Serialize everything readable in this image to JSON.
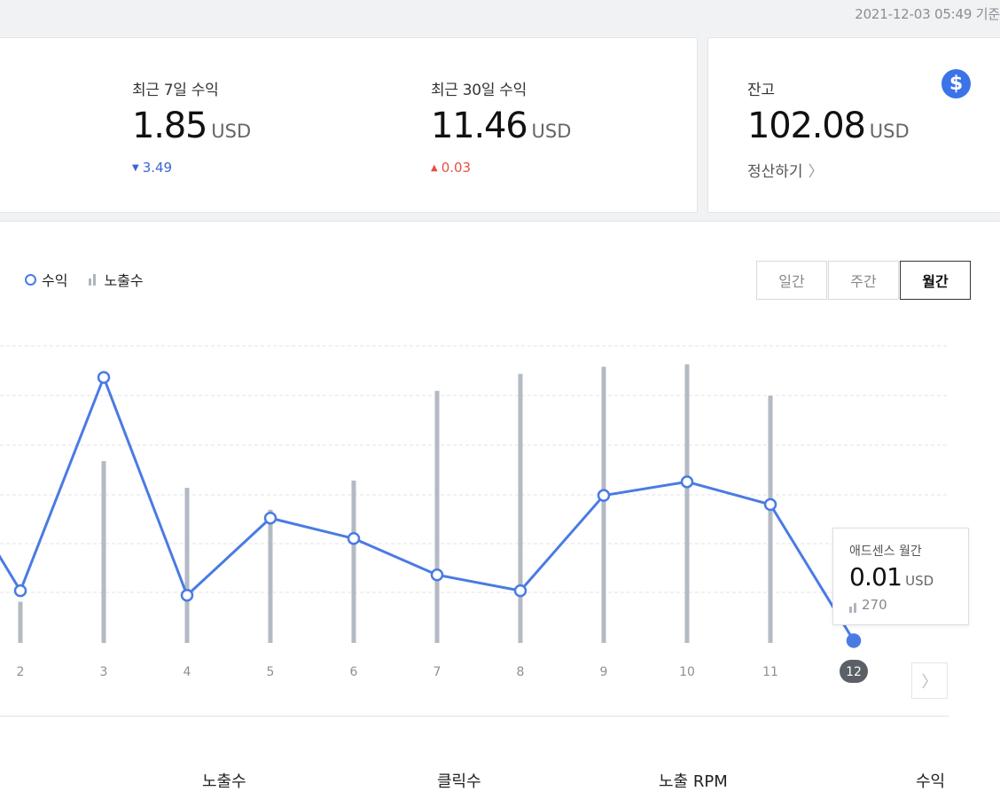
{
  "header": {
    "timestamp": "2021-12-03 05:49 기준"
  },
  "summary": {
    "last7": {
      "label": "최근 7일 수익",
      "value": "1.85",
      "unit": "USD",
      "change": "3.49",
      "direction": "down"
    },
    "last30": {
      "label": "최근 30일 수익",
      "value": "11.46",
      "unit": "USD",
      "change": "0.03",
      "direction": "up"
    },
    "balance": {
      "label": "잔고",
      "value": "102.08",
      "unit": "USD",
      "action": "정산하기",
      "icon": "dollar-icon"
    }
  },
  "legend": {
    "revenue": "수익",
    "impressions": "노출수"
  },
  "period_tabs": [
    "일간",
    "주간",
    "월간"
  ],
  "active_tab": "월간",
  "tooltip": {
    "title": "애드센스 월간",
    "value": "0.01",
    "unit": "USD",
    "impressions": "270"
  },
  "table_headers": [
    "노출수",
    "클릭수",
    "노출 RPM",
    "수익"
  ],
  "colors": {
    "line": "#4a7be3",
    "bar": "#b3bac4",
    "accent": "#3b73e8",
    "down": "#3b63d6",
    "up": "#e55044"
  },
  "chart_data": {
    "type": "line",
    "x": [
      "2",
      "3",
      "4",
      "5",
      "6",
      "7",
      "8",
      "9",
      "10",
      "11",
      "12"
    ],
    "selected": "12",
    "series": [
      {
        "name": "수익",
        "type": "line",
        "values": [
          0.23,
          1.17,
          0.21,
          0.55,
          0.46,
          0.3,
          0.23,
          0.65,
          0.71,
          0.61,
          0.01
        ]
      },
      {
        "name": "노출수",
        "type": "bar",
        "values": [
          1700,
          7500,
          6400,
          5500,
          6700,
          10400,
          11100,
          11400,
          11500,
          10200,
          270
        ]
      }
    ],
    "grid": true
  }
}
